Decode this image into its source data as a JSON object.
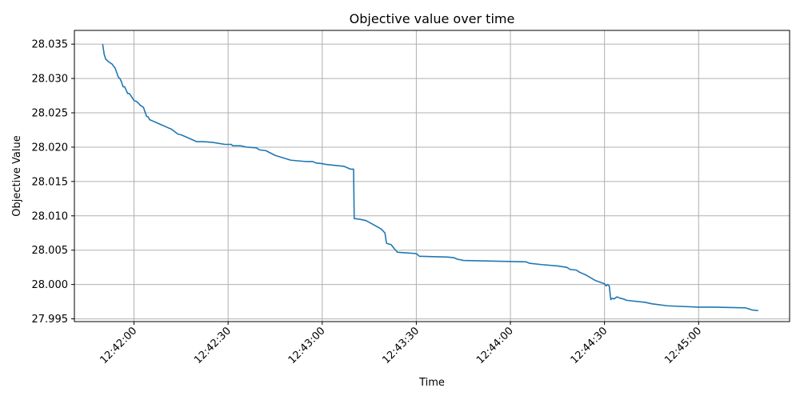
{
  "chart_data": {
    "type": "line",
    "title": "Objective value over time",
    "xlabel": "Time",
    "ylabel": "Objective Value",
    "grid": true,
    "legend": "none",
    "line_color": "#1f77b4",
    "x_ticks": [
      "12:42:00",
      "12:42:30",
      "12:43:00",
      "12:43:30",
      "12:44:00",
      "12:44:30",
      "12:45:00"
    ],
    "y_ticks": [
      "27.995",
      "28.000",
      "28.005",
      "28.010",
      "28.015",
      "28.020",
      "28.025",
      "28.030",
      "28.035"
    ],
    "xlim": [
      "12:41:41",
      "12:45:29"
    ],
    "ylim": [
      27.9946,
      28.037
    ],
    "series": [
      {
        "x": [
          "12:41:50",
          "12:41:50.5",
          "12:41:51",
          "12:41:52",
          "12:41:53",
          "12:41:54",
          "12:41:55",
          "12:41:55.5",
          "12:41:56",
          "12:41:56.5",
          "12:41:57",
          "12:41:58",
          "12:41:58.5",
          "12:41:59",
          "12:42:00",
          "12:42:01",
          "12:42:02",
          "12:42:03",
          "12:42:04",
          "12:42:04.5",
          "12:42:05",
          "12:42:06",
          "12:42:07",
          "12:42:09",
          "12:42:10",
          "12:42:12",
          "12:42:14",
          "12:42:15",
          "12:42:17",
          "12:42:19",
          "12:42:20",
          "12:42:22",
          "12:42:25",
          "12:42:29",
          "12:42:31",
          "12:42:31.5",
          "12:42:34",
          "12:42:36",
          "12:42:39",
          "12:42:40",
          "12:42:42",
          "12:42:45",
          "12:42:50",
          "12:42:55",
          "12:42:57",
          "12:42:58",
          "12:43:00",
          "12:43:01",
          "12:43:07",
          "12:43:09",
          "12:43:10",
          "12:43:10.2",
          "12:43:12",
          "12:43:14",
          "12:43:18",
          "12:43:19",
          "12:43:20",
          "12:43:20.5",
          "12:43:22",
          "12:43:23",
          "12:43:24",
          "12:43:30",
          "12:43:31",
          "12:43:32",
          "12:43:40",
          "12:43:42",
          "12:43:43",
          "12:43:45",
          "12:43:55",
          "12:44:05",
          "12:44:06",
          "12:44:10",
          "12:44:15",
          "12:44:18",
          "12:44:19",
          "12:44:21",
          "12:44:22",
          "12:44:24",
          "12:44:27",
          "12:44:30",
          "12:44:30.5",
          "12:44:31",
          "12:44:31.5",
          "12:44:32",
          "12:44:32.5",
          "12:44:33",
          "12:44:34",
          "12:44:35",
          "12:44:36",
          "12:44:37",
          "12:44:43",
          "12:44:45",
          "12:44:50",
          "12:45:00",
          "12:45:05",
          "12:45:15",
          "12:45:17",
          "12:45:19"
        ],
        "y": [
          28.035,
          28.0335,
          28.0328,
          28.0324,
          28.0321,
          28.0315,
          28.0302,
          28.03,
          28.0295,
          28.0288,
          28.0288,
          28.0278,
          28.0278,
          28.0275,
          28.0268,
          28.0266,
          28.0261,
          28.0258,
          28.0245,
          28.0244,
          28.024,
          28.0238,
          28.0236,
          28.0232,
          28.023,
          28.0226,
          28.0219,
          28.0218,
          28.0214,
          28.021,
          28.0208,
          28.0208,
          28.0207,
          28.0204,
          28.0204,
          28.0202,
          28.0202,
          28.02,
          28.0199,
          28.0196,
          28.0195,
          28.0188,
          28.0181,
          28.0179,
          28.0179,
          28.0177,
          28.0176,
          28.0175,
          28.0172,
          28.0168,
          28.0168,
          28.0096,
          28.0095,
          28.0093,
          28.0083,
          28.008,
          28.0075,
          28.006,
          28.0058,
          28.0052,
          28.0047,
          28.0045,
          28.0041,
          28.0041,
          28.004,
          28.0039,
          28.0037,
          28.0035,
          28.0034,
          28.0033,
          28.0031,
          28.0029,
          28.0027,
          28.0025,
          28.0022,
          28.0021,
          28.0018,
          28.0014,
          28.0006,
          28.0001,
          27.9998,
          28.0,
          27.9998,
          27.9978,
          27.998,
          27.9979,
          27.9982,
          27.998,
          27.9979,
          27.9977,
          27.9974,
          27.9972,
          27.9969,
          27.9967,
          27.9967,
          27.9966,
          27.9963,
          27.9962
        ]
      }
    ]
  }
}
